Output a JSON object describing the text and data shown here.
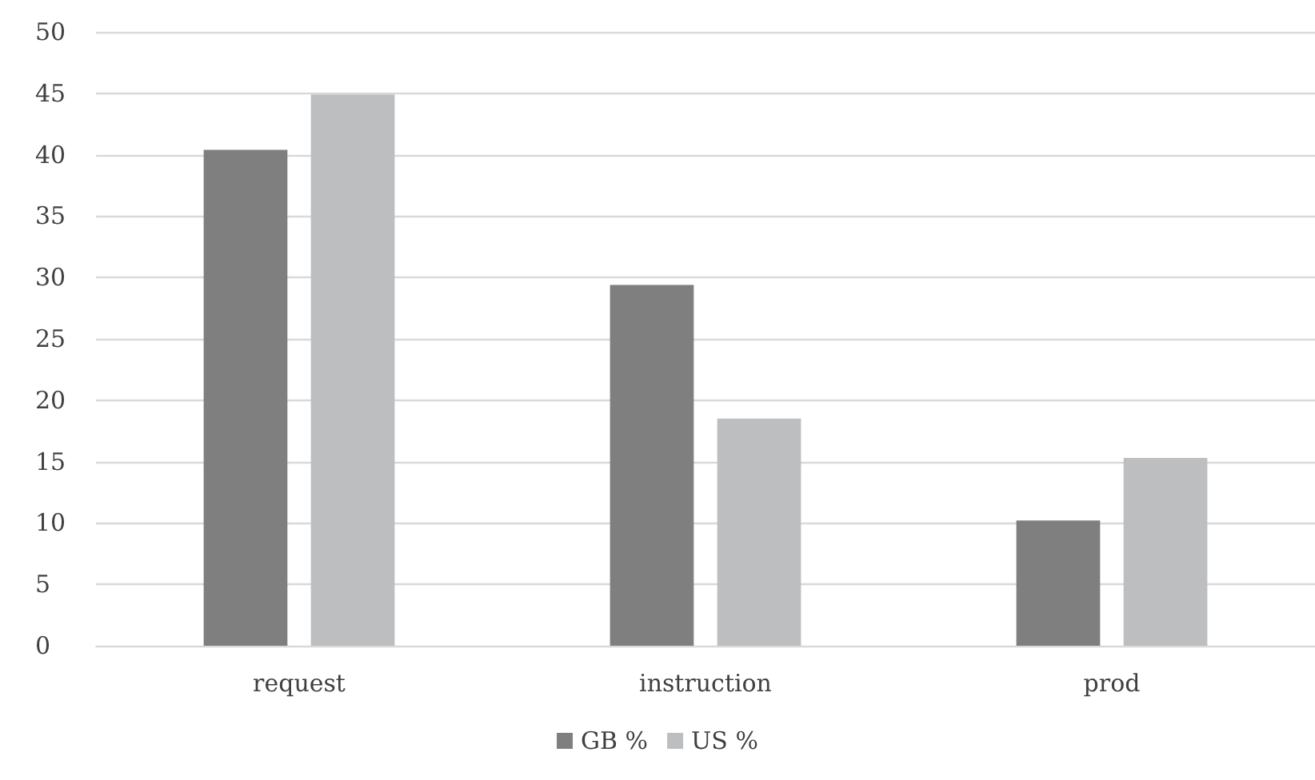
{
  "chart_data": {
    "type": "bar",
    "categories": [
      "request",
      "instruction",
      "prod"
    ],
    "series": [
      {
        "name": "GB %",
        "color": "#7f7f7f",
        "values": [
          40.4,
          29.4,
          10.2
        ]
      },
      {
        "name": "US %",
        "color": "#bdbec0",
        "values": [
          44.9,
          18.5,
          15.3
        ]
      }
    ],
    "ylim": [
      0,
      50
    ],
    "yticks": [
      0,
      5,
      10,
      15,
      20,
      25,
      30,
      35,
      40,
      45,
      50
    ],
    "grid": "y",
    "legend": "bottom"
  }
}
